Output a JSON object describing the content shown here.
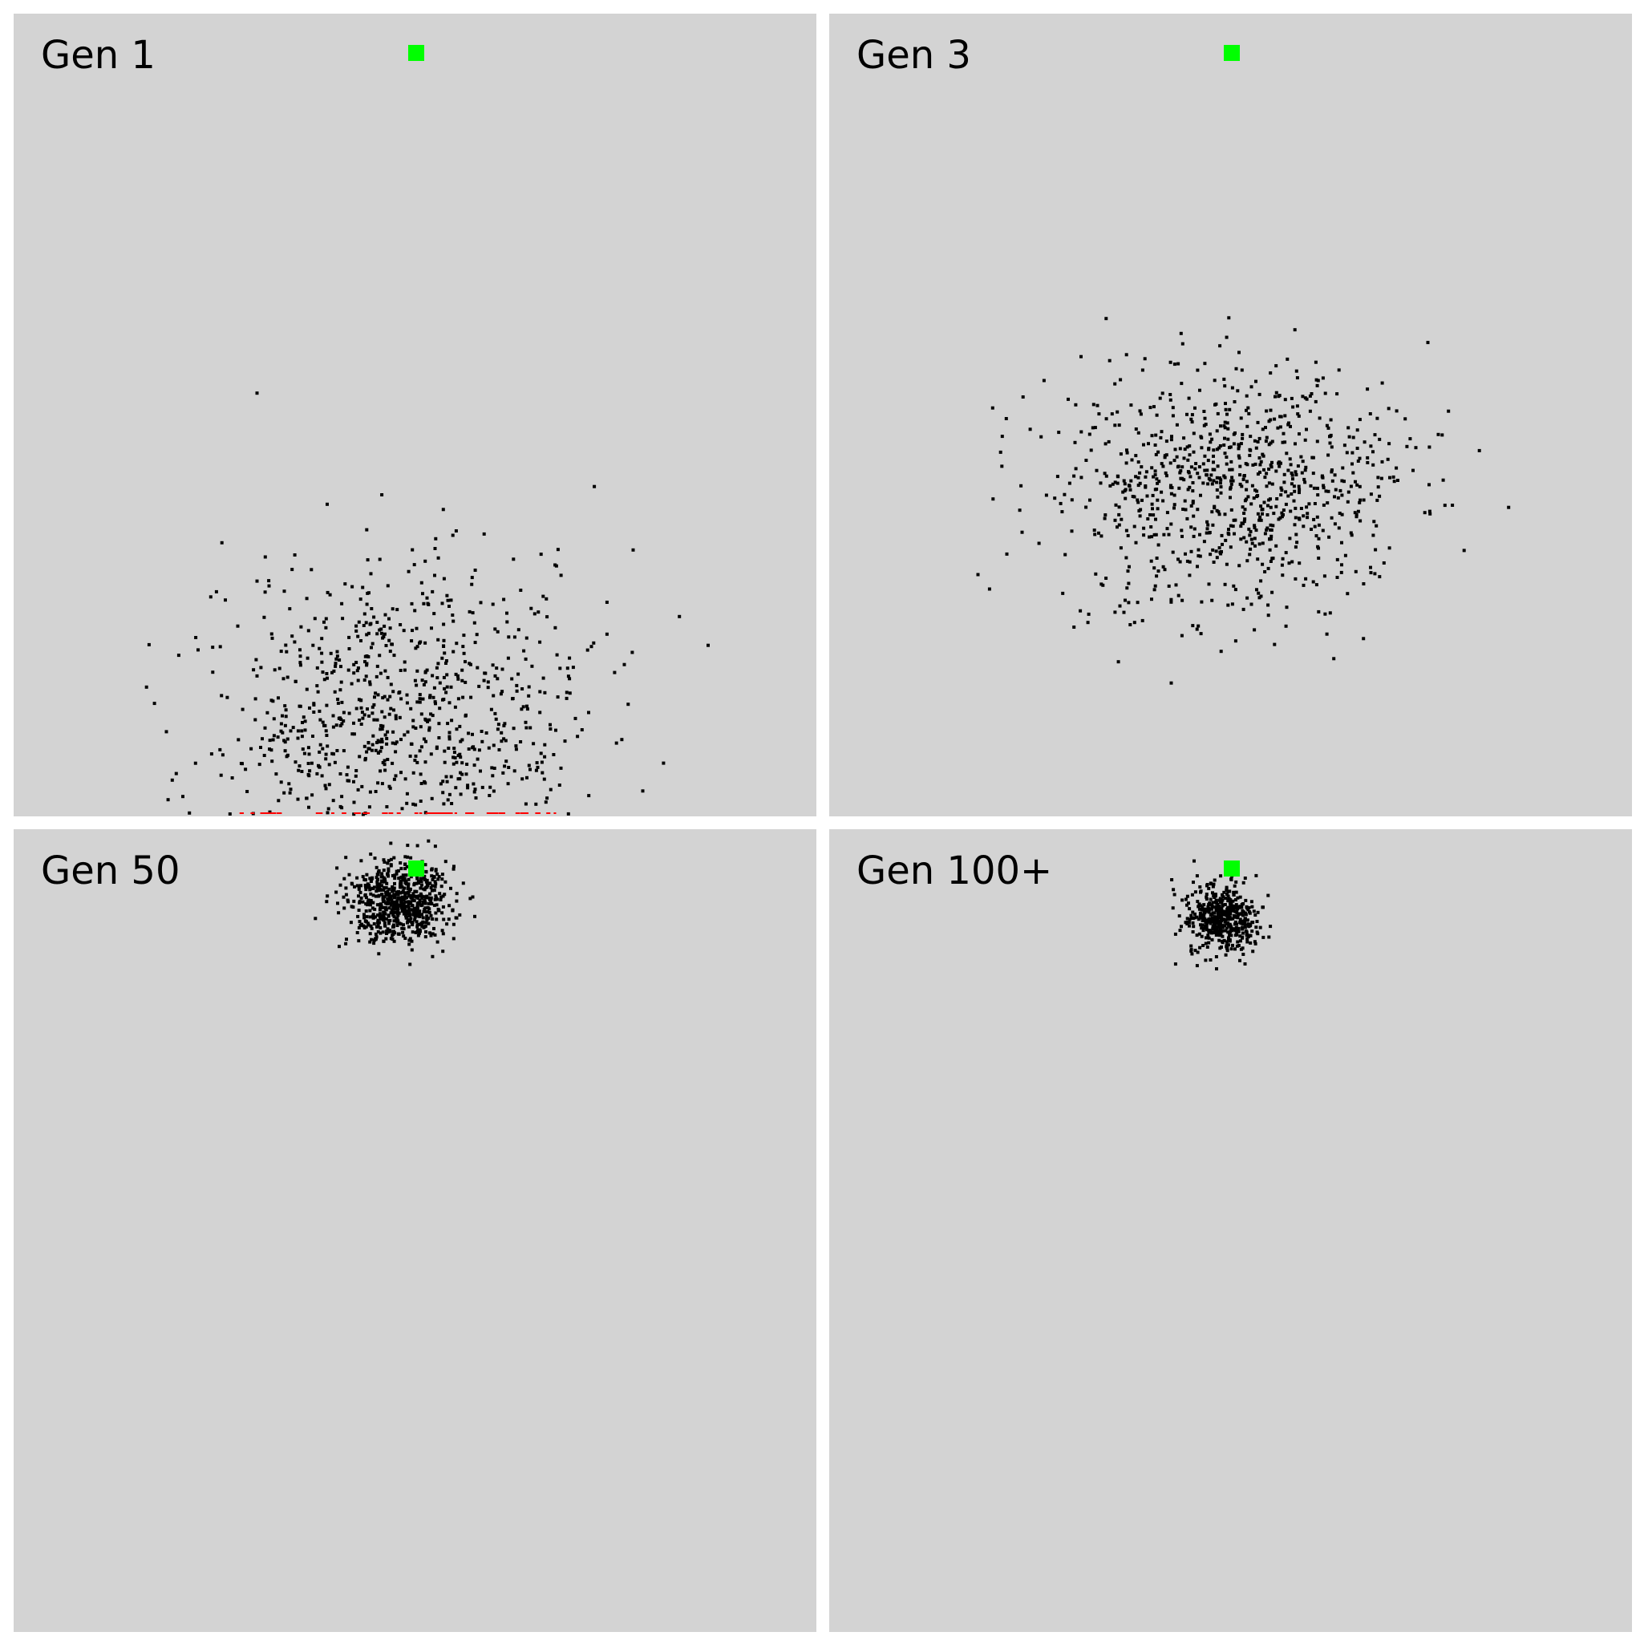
{
  "colors": {
    "background": "#d3d3d3",
    "dot": "#000000",
    "goal": "#00ff00",
    "separator": "#ffffff",
    "trail": "#ff0000"
  },
  "panels": [
    {
      "label": "Gen 1",
      "dot_count": 900,
      "spread": "wide",
      "icon": "goal-square-icon"
    },
    {
      "label": "Gen 3",
      "dot_count": 900,
      "spread": "medium",
      "icon": "goal-square-icon"
    },
    {
      "label": "Gen 50",
      "dot_count": 700,
      "spread": "tight",
      "icon": "goal-square-icon"
    },
    {
      "label": "Gen 100+",
      "dot_count": 500,
      "spread": "tightest",
      "icon": "goal-square-icon"
    }
  ]
}
